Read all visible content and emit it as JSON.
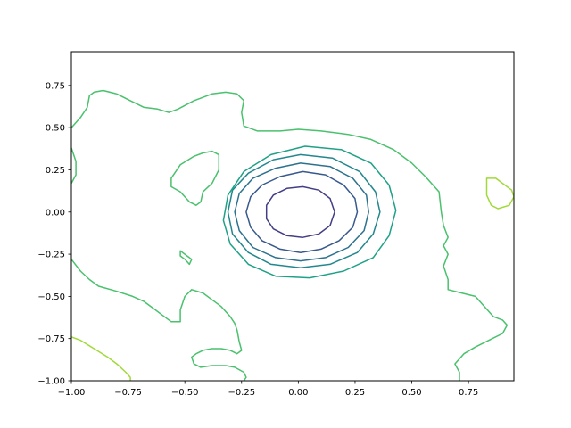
{
  "chart_data": {
    "type": "contour",
    "title": "",
    "xlabel": "",
    "ylabel": "",
    "xlim": [
      -1.0,
      0.95
    ],
    "ylim": [
      -1.0,
      0.95
    ],
    "grid": false,
    "x_ticks": [
      {
        "value": -1.0,
        "label": "−1.00"
      },
      {
        "value": -0.75,
        "label": "−0.75"
      },
      {
        "value": -0.5,
        "label": "−0.50"
      },
      {
        "value": -0.25,
        "label": "−0.25"
      },
      {
        "value": 0.0,
        "label": "0.00"
      },
      {
        "value": 0.25,
        "label": "0.25"
      },
      {
        "value": 0.5,
        "label": "0.50"
      },
      {
        "value": 0.75,
        "label": "0.75"
      }
    ],
    "y_ticks": [
      {
        "value": -1.0,
        "label": "−1.00"
      },
      {
        "value": -0.75,
        "label": "−0.75"
      },
      {
        "value": -0.5,
        "label": "−0.50"
      },
      {
        "value": -0.25,
        "label": "−0.25"
      },
      {
        "value": 0.0,
        "label": "0.00"
      },
      {
        "value": 0.25,
        "label": "0.25"
      },
      {
        "value": 0.5,
        "label": "0.50"
      },
      {
        "value": 0.75,
        "label": "0.75"
      }
    ],
    "contours": [
      {
        "level": 1,
        "color": "#433e85",
        "closed": true,
        "points": [
          [
            0.02,
            0.15
          ],
          [
            0.09,
            0.13
          ],
          [
            0.14,
            0.08
          ],
          [
            0.16,
            0.0
          ],
          [
            0.14,
            -0.08
          ],
          [
            0.09,
            -0.13
          ],
          [
            0.02,
            -0.15
          ],
          [
            -0.05,
            -0.14
          ],
          [
            -0.11,
            -0.1
          ],
          [
            -0.14,
            -0.04
          ],
          [
            -0.14,
            0.04
          ],
          [
            -0.11,
            0.1
          ],
          [
            -0.05,
            0.14
          ]
        ]
      },
      {
        "level": 2,
        "color": "#38598c",
        "closed": true,
        "points": [
          [
            0.02,
            0.24
          ],
          [
            0.12,
            0.22
          ],
          [
            0.2,
            0.16
          ],
          [
            0.25,
            0.08
          ],
          [
            0.26,
            0.0
          ],
          [
            0.24,
            -0.09
          ],
          [
            0.18,
            -0.17
          ],
          [
            0.1,
            -0.22
          ],
          [
            0.01,
            -0.24
          ],
          [
            -0.08,
            -0.22
          ],
          [
            -0.16,
            -0.17
          ],
          [
            -0.21,
            -0.09
          ],
          [
            -0.23,
            0.0
          ],
          [
            -0.21,
            0.09
          ],
          [
            -0.16,
            0.16
          ],
          [
            -0.08,
            0.21
          ]
        ]
      },
      {
        "level": 3,
        "color": "#2c728e",
        "closed": true,
        "points": [
          [
            0.01,
            0.29
          ],
          [
            0.14,
            0.27
          ],
          [
            0.24,
            0.2
          ],
          [
            0.3,
            0.1
          ],
          [
            0.31,
            0.0
          ],
          [
            0.29,
            -0.11
          ],
          [
            0.22,
            -0.21
          ],
          [
            0.12,
            -0.27
          ],
          [
            0.01,
            -0.29
          ],
          [
            -0.1,
            -0.27
          ],
          [
            -0.2,
            -0.21
          ],
          [
            -0.26,
            -0.11
          ],
          [
            -0.28,
            0.0
          ],
          [
            -0.26,
            0.11
          ],
          [
            -0.2,
            0.2
          ],
          [
            -0.1,
            0.26
          ]
        ]
      },
      {
        "level": 4,
        "color": "#24878e",
        "closed": true,
        "points": [
          [
            0.01,
            0.34
          ],
          [
            0.15,
            0.32
          ],
          [
            0.27,
            0.24
          ],
          [
            0.34,
            0.12
          ],
          [
            0.36,
            0.0
          ],
          [
            0.33,
            -0.13
          ],
          [
            0.26,
            -0.24
          ],
          [
            0.14,
            -0.31
          ],
          [
            0.01,
            -0.33
          ],
          [
            -0.12,
            -0.31
          ],
          [
            -0.22,
            -0.24
          ],
          [
            -0.29,
            -0.13
          ],
          [
            -0.31,
            0.0
          ],
          [
            -0.29,
            0.13
          ],
          [
            -0.22,
            0.23
          ],
          [
            -0.11,
            0.31
          ]
        ]
      },
      {
        "level": 5,
        "color": "#1fa187",
        "closed": true,
        "points": [
          [
            0.03,
            0.39
          ],
          [
            0.19,
            0.37
          ],
          [
            0.32,
            0.29
          ],
          [
            0.4,
            0.16
          ],
          [
            0.43,
            0.01
          ],
          [
            0.4,
            -0.14
          ],
          [
            0.33,
            -0.27
          ],
          [
            0.2,
            -0.35
          ],
          [
            0.05,
            -0.39
          ],
          [
            -0.1,
            -0.38
          ],
          [
            -0.22,
            -0.31
          ],
          [
            -0.3,
            -0.19
          ],
          [
            -0.33,
            -0.05
          ],
          [
            -0.31,
            0.1
          ],
          [
            -0.24,
            0.24
          ],
          [
            -0.12,
            0.34
          ]
        ]
      },
      {
        "level": 6,
        "color": "#4ac16d",
        "closed": false,
        "points": [
          [
            -1.0,
            0.5
          ],
          [
            -0.96,
            0.56
          ],
          [
            -0.93,
            0.62
          ],
          [
            -0.92,
            0.69
          ],
          [
            -0.9,
            0.71
          ],
          [
            -0.86,
            0.72
          ],
          [
            -0.8,
            0.7
          ],
          [
            -0.74,
            0.66
          ],
          [
            -0.68,
            0.62
          ],
          [
            -0.62,
            0.61
          ],
          [
            -0.57,
            0.59
          ],
          [
            -0.53,
            0.61
          ],
          [
            -0.46,
            0.66
          ],
          [
            -0.38,
            0.7
          ],
          [
            -0.32,
            0.71
          ],
          [
            -0.27,
            0.7
          ],
          [
            -0.24,
            0.66
          ],
          [
            -0.25,
            0.59
          ],
          [
            -0.24,
            0.51
          ],
          [
            -0.18,
            0.48
          ],
          [
            -0.08,
            0.48
          ],
          [
            0.0,
            0.49
          ],
          [
            0.1,
            0.48
          ],
          [
            0.22,
            0.46
          ],
          [
            0.32,
            0.43
          ],
          [
            0.42,
            0.37
          ],
          [
            0.5,
            0.29
          ],
          [
            0.56,
            0.21
          ],
          [
            0.62,
            0.12
          ],
          [
            0.63,
            0.0
          ],
          [
            0.64,
            -0.08
          ],
          [
            0.66,
            -0.15
          ],
          [
            0.64,
            -0.2
          ],
          [
            0.66,
            -0.25
          ],
          [
            0.64,
            -0.32
          ],
          [
            0.66,
            -0.4
          ],
          [
            0.66,
            -0.46
          ],
          [
            0.72,
            -0.48
          ],
          [
            0.78,
            -0.5
          ],
          [
            0.82,
            -0.56
          ],
          [
            0.86,
            -0.62
          ],
          [
            0.9,
            -0.64
          ],
          [
            0.92,
            -0.67
          ],
          [
            0.9,
            -0.72
          ],
          [
            0.84,
            -0.76
          ],
          [
            0.78,
            -0.8
          ],
          [
            0.73,
            -0.84
          ],
          [
            0.69,
            -0.9
          ],
          [
            0.71,
            -0.95
          ],
          [
            0.71,
            -1.0
          ]
        ]
      },
      {
        "level": 6,
        "color": "#4ac16d",
        "closed": false,
        "points": [
          [
            -1.0,
            0.38
          ],
          [
            -0.98,
            0.3
          ],
          [
            -0.98,
            0.22
          ],
          [
            -1.0,
            0.17
          ]
        ]
      },
      {
        "level": 6,
        "color": "#4ac16d",
        "closed": false,
        "points": [
          [
            -1.0,
            -0.28
          ],
          [
            -0.96,
            -0.35
          ],
          [
            -0.92,
            -0.4
          ],
          [
            -0.88,
            -0.44
          ],
          [
            -0.8,
            -0.47
          ],
          [
            -0.73,
            -0.5
          ],
          [
            -0.68,
            -0.53
          ],
          [
            -0.64,
            -0.57
          ],
          [
            -0.6,
            -0.61
          ],
          [
            -0.56,
            -0.65
          ],
          [
            -0.52,
            -0.65
          ],
          [
            -0.52,
            -0.58
          ],
          [
            -0.5,
            -0.5
          ],
          [
            -0.47,
            -0.46
          ],
          [
            -0.42,
            -0.48
          ],
          [
            -0.38,
            -0.52
          ],
          [
            -0.34,
            -0.56
          ],
          [
            -0.3,
            -0.62
          ],
          [
            -0.28,
            -0.66
          ],
          [
            -0.27,
            -0.7
          ],
          [
            -0.26,
            -0.77
          ],
          [
            -0.25,
            -0.82
          ],
          [
            -0.27,
            -0.84
          ],
          [
            -0.3,
            -0.82
          ],
          [
            -0.34,
            -0.81
          ],
          [
            -0.38,
            -0.81
          ],
          [
            -0.42,
            -0.82
          ],
          [
            -0.45,
            -0.84
          ],
          [
            -0.47,
            -0.86
          ],
          [
            -0.46,
            -0.9
          ],
          [
            -0.43,
            -0.92
          ],
          [
            -0.38,
            -0.91
          ],
          [
            -0.32,
            -0.91
          ],
          [
            -0.28,
            -0.92
          ],
          [
            -0.24,
            -0.95
          ],
          [
            -0.23,
            -0.98
          ],
          [
            -0.24,
            -1.0
          ]
        ]
      },
      {
        "level": 6,
        "color": "#4ac16d",
        "closed": true,
        "points": [
          [
            -0.56,
            0.2
          ],
          [
            -0.52,
            0.28
          ],
          [
            -0.46,
            0.33
          ],
          [
            -0.42,
            0.35
          ],
          [
            -0.38,
            0.36
          ],
          [
            -0.35,
            0.34
          ],
          [
            -0.35,
            0.25
          ],
          [
            -0.38,
            0.17
          ],
          [
            -0.42,
            0.12
          ],
          [
            -0.43,
            0.06
          ],
          [
            -0.45,
            0.04
          ],
          [
            -0.48,
            0.06
          ],
          [
            -0.52,
            0.12
          ],
          [
            -0.56,
            0.15
          ]
        ]
      },
      {
        "level": 6,
        "color": "#4ac16d",
        "closed": true,
        "points": [
          [
            -0.52,
            -0.23
          ],
          [
            -0.49,
            -0.26
          ],
          [
            -0.47,
            -0.28
          ],
          [
            -0.48,
            -0.31
          ],
          [
            -0.5,
            -0.28
          ],
          [
            -0.52,
            -0.26
          ]
        ]
      },
      {
        "level": 7,
        "color": "#a0da39",
        "closed": false,
        "points": [
          [
            -1.0,
            -0.74
          ],
          [
            -0.96,
            -0.76
          ],
          [
            -0.9,
            -0.81
          ],
          [
            -0.84,
            -0.86
          ],
          [
            -0.8,
            -0.9
          ],
          [
            -0.76,
            -0.95
          ],
          [
            -0.74,
            -0.98
          ],
          [
            -0.74,
            -1.0
          ]
        ]
      },
      {
        "level": 7,
        "color": "#a0da39",
        "closed": true,
        "points": [
          [
            0.83,
            0.2
          ],
          [
            0.87,
            0.2
          ],
          [
            0.9,
            0.17
          ],
          [
            0.94,
            0.13
          ],
          [
            0.95,
            0.09
          ],
          [
            0.93,
            0.04
          ],
          [
            0.88,
            0.02
          ],
          [
            0.85,
            0.04
          ],
          [
            0.83,
            0.1
          ],
          [
            0.83,
            0.16
          ]
        ]
      }
    ]
  }
}
